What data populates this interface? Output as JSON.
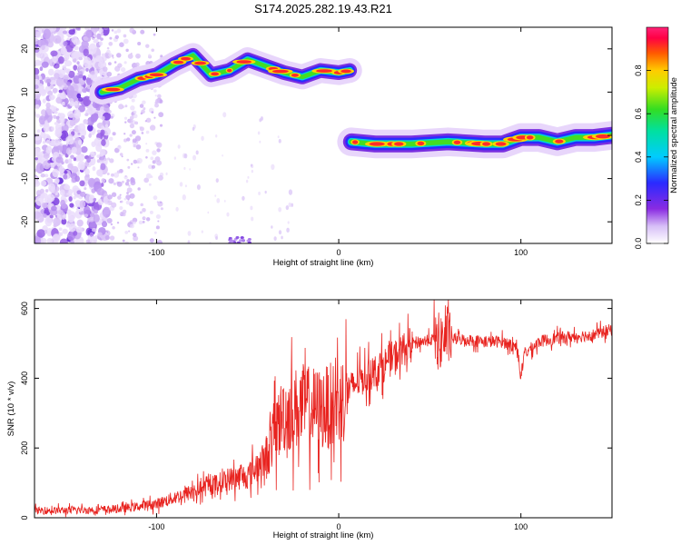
{
  "figure": {
    "title": "S174.2025.282.19.43.R21"
  },
  "chart_data": [
    {
      "type": "heatmap",
      "name": "spectrogram",
      "xlabel": "Height of straight line (km)",
      "ylabel": "Frequency (Hz)",
      "xlim": [
        -167,
        150
      ],
      "ylim": [
        -25,
        25
      ],
      "xticks": [
        -100,
        0,
        100
      ],
      "xticks_labels": [
        "-100",
        "0",
        "100"
      ],
      "yticks": [
        -20,
        -10,
        0,
        10,
        20
      ],
      "yticks_labels": [
        "-20",
        "-10",
        "0",
        "10",
        "20"
      ],
      "colorbar": {
        "label": "Normalized spectral amplitude",
        "range": [
          0,
          1
        ],
        "ticks": [
          0.0,
          0.2,
          0.4,
          0.6,
          0.8
        ],
        "ticks_labels": [
          "0.0",
          "0.2",
          "0.4",
          "0.6",
          "0.8"
        ],
        "colormap": "rainbow (white-violet-blue-cyan-green-yellow-red-magenta)"
      },
      "ridges": [
        {
          "segment": "pre-gap",
          "x": [
            -130,
            -120,
            -110,
            -100,
            -90,
            -80,
            -70,
            -60,
            -50,
            -40,
            -30,
            -20,
            -10,
            0,
            6
          ],
          "y": [
            10,
            11,
            13,
            14,
            16.5,
            18.5,
            14,
            15,
            17.5,
            16,
            14.5,
            13.5,
            15,
            14.5,
            15
          ]
        },
        {
          "segment": "post-gap",
          "x": [
            7,
            20,
            40,
            60,
            80,
            90,
            100,
            110,
            120,
            130,
            140,
            150
          ],
          "y": [
            -1.5,
            -2,
            -2,
            -1.5,
            -2,
            -2,
            -0.5,
            -0.5,
            -1.5,
            -0.5,
            -0.5,
            0
          ]
        }
      ],
      "grid": false
    },
    {
      "type": "line",
      "name": "snr",
      "xlabel": "Height of straight line (km)",
      "ylabel": "SNR (10 * v/v)",
      "xlim": [
        -167,
        150
      ],
      "ylim": [
        0,
        625
      ],
      "xticks": [
        -100,
        0,
        100
      ],
      "xticks_labels": [
        "-100",
        "0",
        "100"
      ],
      "yticks": [
        0,
        200,
        400,
        600
      ],
      "yticks_labels": [
        "0",
        "200",
        "400",
        "600"
      ],
      "color": "#e8231f",
      "envelope": {
        "x": [
          -167,
          -140,
          -120,
          -100,
          -80,
          -60,
          -50,
          -40,
          -35,
          -30,
          -20,
          -10,
          0,
          10,
          20,
          25,
          30,
          35,
          40,
          45,
          50,
          60,
          70,
          80,
          90,
          98,
          100,
          102,
          110,
          120,
          130,
          140,
          150
        ],
        "y": [
          20,
          22,
          25,
          40,
          75,
          110,
          120,
          170,
          250,
          300,
          320,
          310,
          330,
          390,
          420,
          440,
          460,
          480,
          500,
          505,
          510,
          515,
          510,
          505,
          505,
          490,
          400,
          470,
          505,
          515,
          520,
          525,
          540
        ]
      },
      "grid": false
    }
  ]
}
